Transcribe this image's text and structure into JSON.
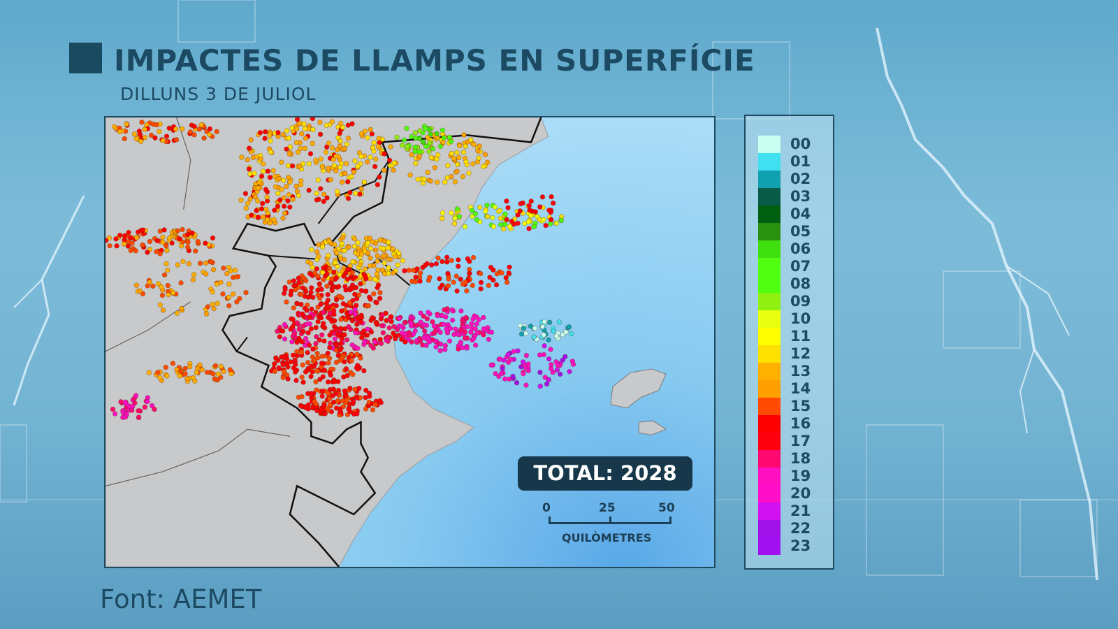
{
  "header": {
    "title": "IMPACTES DE LLAMPS EN SUPERFÍCIE",
    "subtitle": "DILLUNS 3 DE JULIOL"
  },
  "map": {
    "total_label": "TOTAL: 2028",
    "scale": {
      "ticks": [
        "0",
        "25",
        "50"
      ],
      "unit": "QUILÒMETRES"
    }
  },
  "legend": {
    "items": [
      {
        "label": "00",
        "color": "#c8fff0"
      },
      {
        "label": "01",
        "color": "#40e0f0"
      },
      {
        "label": "02",
        "color": "#10a0b0"
      },
      {
        "label": "03",
        "color": "#0a5a48"
      },
      {
        "label": "04",
        "color": "#006010"
      },
      {
        "label": "05",
        "color": "#2a9010"
      },
      {
        "label": "06",
        "color": "#40e010"
      },
      {
        "label": "07",
        "color": "#50ff10"
      },
      {
        "label": "08",
        "color": "#50ff10"
      },
      {
        "label": "09",
        "color": "#90f010"
      },
      {
        "label": "10",
        "color": "#e8ff10"
      },
      {
        "label": "11",
        "color": "#ffff00"
      },
      {
        "label": "12",
        "color": "#ffe000"
      },
      {
        "label": "13",
        "color": "#ffb000"
      },
      {
        "label": "14",
        "color": "#ffa000"
      },
      {
        "label": "15",
        "color": "#ff4a00"
      },
      {
        "label": "16",
        "color": "#ff0000"
      },
      {
        "label": "17",
        "color": "#ff0010"
      },
      {
        "label": "18",
        "color": "#ff0870"
      },
      {
        "label": "19",
        "color": "#ff10c0"
      },
      {
        "label": "20",
        "color": "#ff10c8"
      },
      {
        "label": "21",
        "color": "#d010f0"
      },
      {
        "label": "22",
        "color": "#a010e8"
      },
      {
        "label": "23",
        "color": "#a010f0"
      }
    ]
  },
  "footer": {
    "source": "Font: AEMET"
  }
}
